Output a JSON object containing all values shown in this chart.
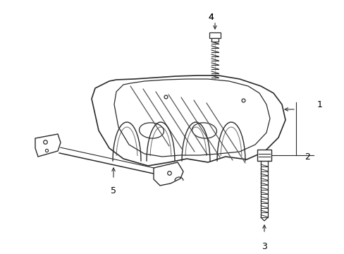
{
  "background_color": "#ffffff",
  "line_color": "#2a2a2a",
  "text_color": "#000000",
  "fig_width": 4.89,
  "fig_height": 3.6,
  "dpi": 100,
  "label_fontsize": 9,
  "label_fontsize_small": 8
}
